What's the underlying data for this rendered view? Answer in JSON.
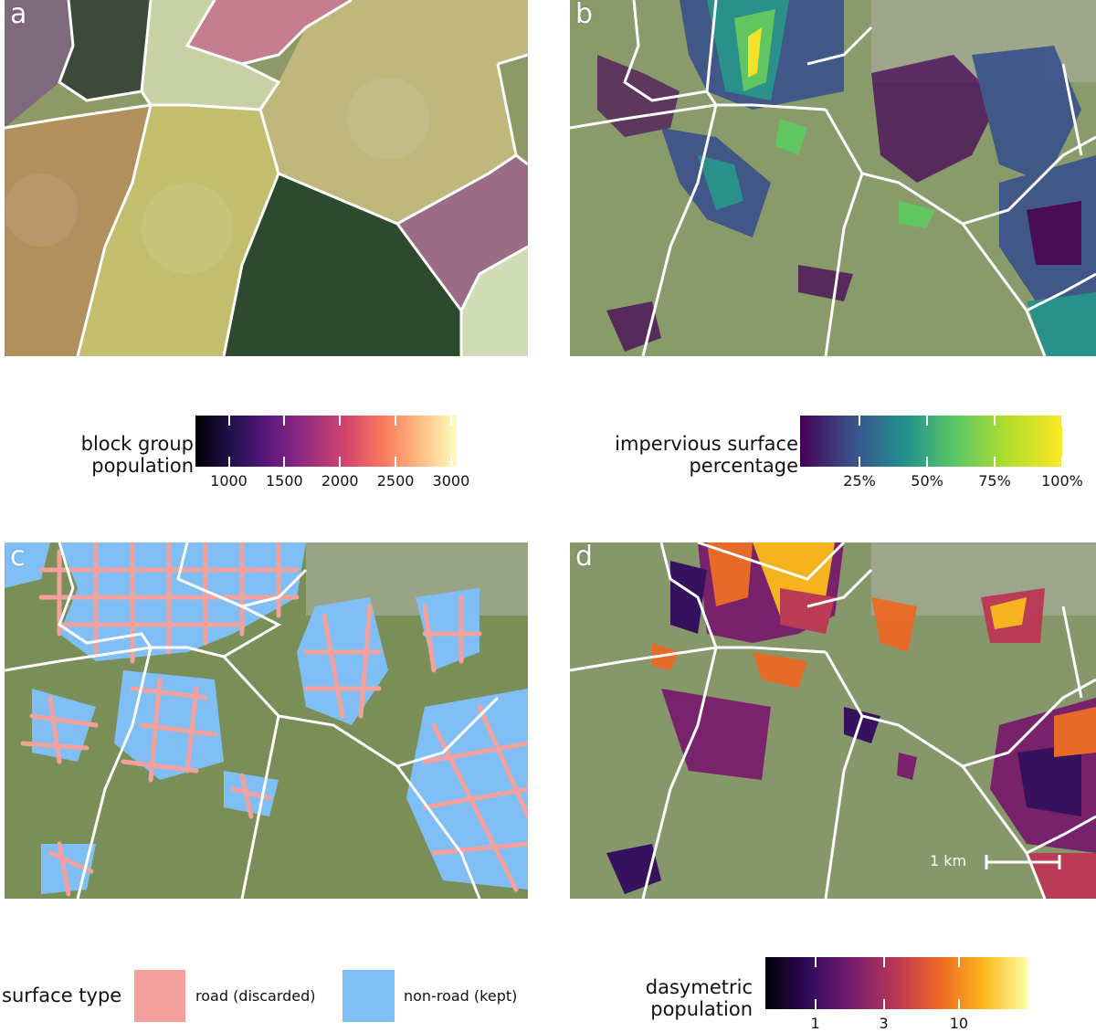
{
  "colors": {
    "road": "#F4A09C",
    "nonroad": "#7FBFF5",
    "boundary": "#FFFFFF",
    "magma": [
      "#000004",
      "#221150",
      "#5f187f",
      "#982d80",
      "#d3436e",
      "#f8765c",
      "#febb81",
      "#fcfdbf"
    ],
    "viridis": [
      "#440154",
      "#3b528b",
      "#21918c",
      "#5ec962",
      "#b5de2b",
      "#fde725"
    ],
    "inferno": [
      "#000004",
      "#320a5e",
      "#781c6d",
      "#bc3754",
      "#ed6925",
      "#fbb61a",
      "#fcffa4"
    ]
  },
  "panels": [
    {
      "id": "a",
      "label": "a"
    },
    {
      "id": "b",
      "label": "b"
    },
    {
      "id": "c",
      "label": "c"
    },
    {
      "id": "d",
      "label": "d"
    }
  ],
  "legend_a": {
    "title": "block group\npopulation",
    "min": 700,
    "max": 3050,
    "ticks": [
      {
        "value": 1000,
        "label": "1000"
      },
      {
        "value": 1500,
        "label": "1500"
      },
      {
        "value": 2000,
        "label": "2000"
      },
      {
        "value": 2500,
        "label": "2500"
      },
      {
        "value": 3000,
        "label": "3000"
      }
    ]
  },
  "legend_b": {
    "title": "impervious surface\npercentage",
    "min": 3,
    "max": 100,
    "ticks": [
      {
        "value": 25,
        "label": "25%"
      },
      {
        "value": 50,
        "label": "50%"
      },
      {
        "value": 75,
        "label": "75%"
      },
      {
        "value": 100,
        "label": "100%"
      }
    ]
  },
  "legend_c": {
    "title": "surface type",
    "items": [
      {
        "label": "road (discarded)",
        "color": "#F4A09C"
      },
      {
        "label": "non-road (kept)",
        "color": "#7FBFF5"
      }
    ]
  },
  "legend_d": {
    "title": "dasymetric\npopulation",
    "scale": "log",
    "min": 0.45,
    "max": 30,
    "ticks": [
      {
        "value": 1,
        "label": "1"
      },
      {
        "value": 3,
        "label": "3"
      },
      {
        "value": 10,
        "label": "10"
      }
    ]
  },
  "scale_bar": {
    "label": "1 km"
  }
}
